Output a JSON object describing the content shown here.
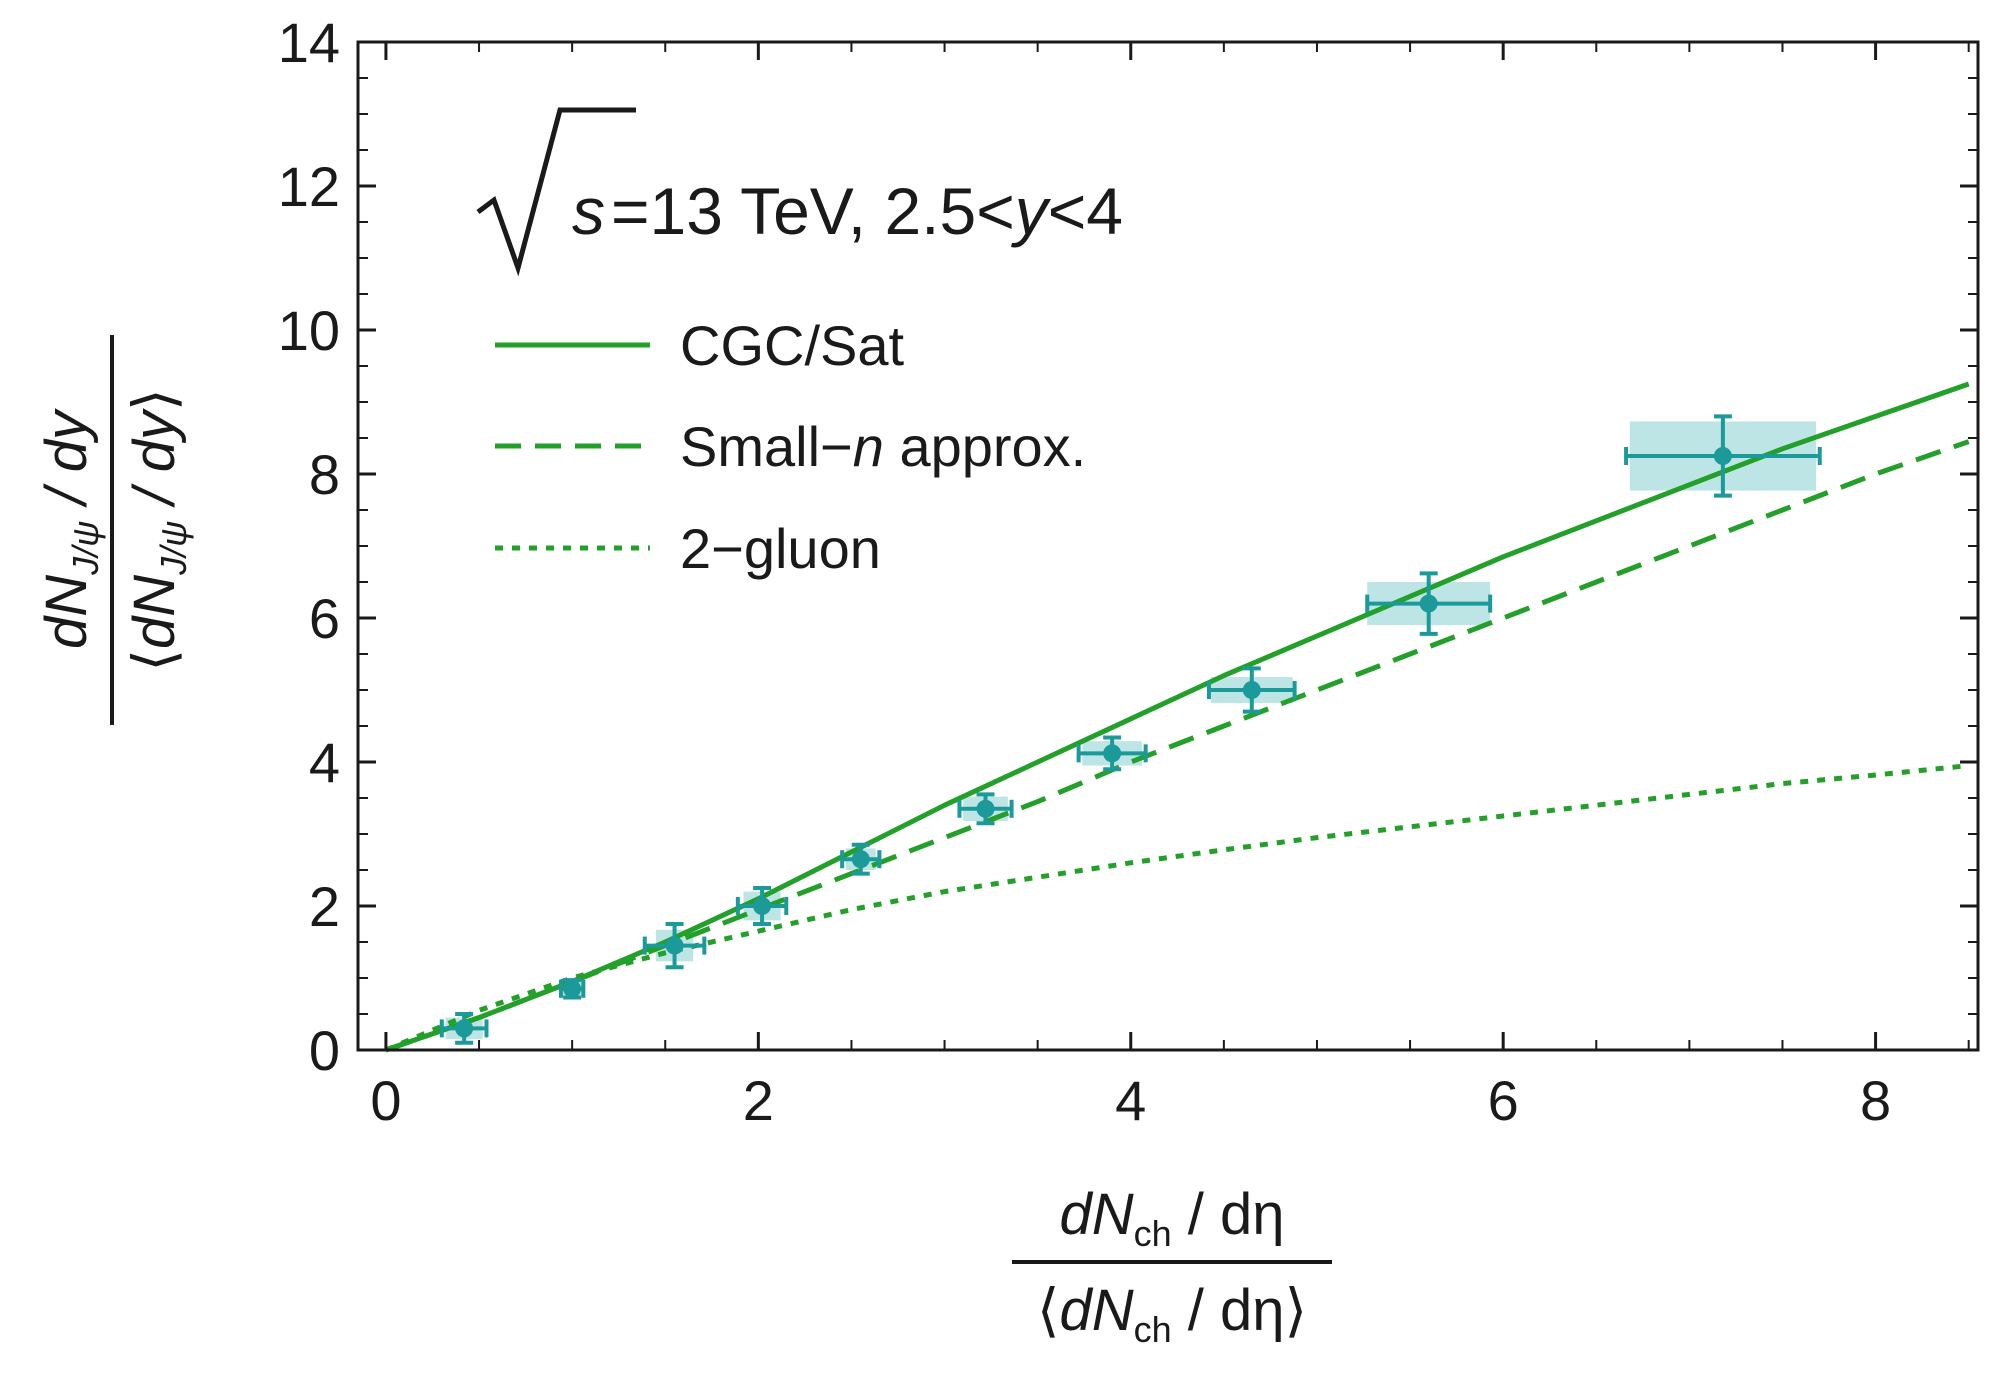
{
  "chart_data": {
    "type": "line",
    "title": "",
    "annotation": {
      "sqrt_var": "s",
      "rest_a": "=13 TeV, 2.5<",
      "rest_var": "y",
      "rest_b": "<4"
    },
    "xlabel": {
      "num_d": "dN",
      "num_sub": "ch",
      "num_rest": " / dη",
      "den_open": "⟨",
      "den_d": "dN",
      "den_sub": "ch",
      "den_rest": " / dη",
      "den_close": "⟩"
    },
    "ylabel": {
      "num_d": "dN",
      "num_sub": "J/ψ",
      "num_rest": " / dy",
      "den_open": "⟨",
      "den_d": "dN",
      "den_sub": "J/ψ",
      "den_rest": " / dy",
      "den_close": "⟩"
    },
    "xlim": [
      -0.15,
      8.55
    ],
    "ylim": [
      0,
      14
    ],
    "xticks": [
      0,
      2,
      4,
      6,
      8
    ],
    "yticks": [
      0,
      2,
      4,
      6,
      8,
      10,
      12,
      14
    ],
    "xtick_labels": [
      "0",
      "2",
      "4",
      "6",
      "8"
    ],
    "ytick_labels": [
      "0",
      "2",
      "4",
      "6",
      "8",
      "10",
      "12",
      "14"
    ],
    "legend_position": "upper-left",
    "colors": {
      "curve": "#22a02a",
      "data": "#1c9a9a",
      "syst_box": "#a8dcdc"
    },
    "series": [
      {
        "name": "CGC/Sat",
        "style": "solid",
        "x": [
          0,
          0.5,
          1.0,
          1.5,
          2.0,
          2.5,
          3.0,
          3.5,
          4.0,
          4.5,
          5.0,
          5.5,
          6.0,
          6.5,
          7.0,
          7.5,
          8.0,
          8.5
        ],
        "y": [
          0,
          0.45,
          0.95,
          1.5,
          2.1,
          2.75,
          3.4,
          4.0,
          4.6,
          5.2,
          5.75,
          6.3,
          6.85,
          7.35,
          7.85,
          8.35,
          8.8,
          9.25
        ]
      },
      {
        "name": "Small-n approx.",
        "style": "dashed",
        "x": [
          0,
          0.5,
          1.0,
          1.5,
          2.0,
          2.5,
          3.0,
          3.5,
          4.0,
          4.5,
          5.0,
          5.5,
          6.0,
          6.5,
          7.0,
          7.5,
          8.0,
          8.5
        ],
        "y": [
          0,
          0.45,
          0.95,
          1.45,
          1.95,
          2.45,
          2.95,
          3.45,
          4.0,
          4.5,
          5.0,
          5.5,
          6.0,
          6.5,
          7.0,
          7.5,
          8.0,
          8.45
        ]
      },
      {
        "name": "2-gluon",
        "style": "dotted",
        "x": [
          0,
          0.5,
          1.0,
          1.5,
          2.0,
          2.5,
          3.0,
          3.5,
          4.0,
          4.5,
          5.0,
          5.5,
          6.0,
          6.5,
          7.0,
          7.5,
          8.0,
          8.5
        ],
        "y": [
          0,
          0.55,
          1.0,
          1.35,
          1.65,
          1.95,
          2.2,
          2.4,
          2.6,
          2.78,
          2.95,
          3.1,
          3.25,
          3.4,
          3.55,
          3.7,
          3.82,
          3.95
        ]
      }
    ],
    "points": [
      {
        "x": 0.42,
        "y": 0.3,
        "xerr": 0.12,
        "yerr": 0.2,
        "sys_x": 0.1,
        "sys_y": 0.15
      },
      {
        "x": 1.0,
        "y": 0.85,
        "xerr": 0.06,
        "yerr": 0.12,
        "sys_x": 0.07,
        "sys_y": 0.12
      },
      {
        "x": 1.55,
        "y": 1.45,
        "xerr": 0.16,
        "yerr": 0.3,
        "sys_x": 0.1,
        "sys_y": 0.22
      },
      {
        "x": 2.02,
        "y": 2.0,
        "xerr": 0.13,
        "yerr": 0.25,
        "sys_x": 0.1,
        "sys_y": 0.2
      },
      {
        "x": 2.55,
        "y": 2.65,
        "xerr": 0.1,
        "yerr": 0.2,
        "sys_x": 0.08,
        "sys_y": 0.15
      },
      {
        "x": 3.22,
        "y": 3.35,
        "xerr": 0.14,
        "yerr": 0.2,
        "sys_x": 0.12,
        "sys_y": 0.17
      },
      {
        "x": 3.9,
        "y": 4.12,
        "xerr": 0.18,
        "yerr": 0.22,
        "sys_x": 0.16,
        "sys_y": 0.17
      },
      {
        "x": 4.65,
        "y": 5.0,
        "xerr": 0.23,
        "yerr": 0.3,
        "sys_x": 0.22,
        "sys_y": 0.18
      },
      {
        "x": 5.6,
        "y": 6.2,
        "xerr": 0.33,
        "yerr": 0.42,
        "sys_x": 0.33,
        "sys_y": 0.3
      },
      {
        "x": 7.18,
        "y": 8.25,
        "xerr": 0.52,
        "yerr": 0.55,
        "sys_x": 0.5,
        "sys_y": 0.48
      }
    ]
  }
}
